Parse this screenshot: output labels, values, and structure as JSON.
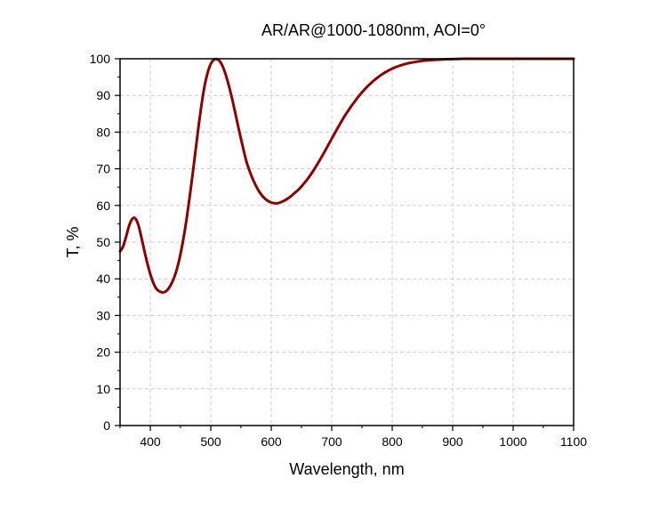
{
  "chart_data": {
    "type": "line",
    "title": "AR/AR@1000-1080nm, AOI=0°",
    "xlabel": "Wavelength, nm",
    "ylabel": "T, %",
    "xlim": [
      350,
      1100
    ],
    "ylim": [
      0,
      100
    ],
    "x_ticks": [
      "400",
      "500",
      "600",
      "700",
      "800",
      "900",
      "1000",
      "1100"
    ],
    "y_ticks": [
      "0",
      "10",
      "20",
      "30",
      "40",
      "50",
      "60",
      "70",
      "80",
      "90",
      "100"
    ],
    "grid": true,
    "legend": "none",
    "series": [
      {
        "color": "#8b0000",
        "x": [
          350,
          355,
          360,
          365,
          370,
          375,
          380,
          385,
          390,
          395,
          400,
          405,
          410,
          415,
          420,
          425,
          430,
          435,
          440,
          445,
          450,
          455,
          460,
          465,
          470,
          475,
          480,
          485,
          490,
          495,
          500,
          505,
          510,
          515,
          520,
          525,
          530,
          535,
          540,
          545,
          550,
          555,
          560,
          570,
          580,
          590,
          600,
          610,
          620,
          630,
          640,
          645,
          650,
          660,
          670,
          680,
          690,
          700,
          720,
          740,
          760,
          780,
          800,
          820,
          840,
          860,
          880,
          900,
          920,
          940,
          960,
          980,
          1000,
          1020,
          1040,
          1060,
          1080,
          1100
        ],
        "y": [
          47.5,
          48.8,
          51.5,
          54.5,
          56.3,
          56.5,
          54.8,
          51.5,
          47.8,
          44.3,
          41.3,
          38.9,
          37.3,
          36.6,
          36.3,
          36.5,
          37.3,
          38.7,
          40.6,
          43.3,
          46.8,
          51.2,
          56.3,
          62.2,
          68.5,
          75.2,
          81.8,
          87.8,
          92.8,
          96.3,
          98.6,
          99.7,
          99.9,
          99.3,
          97.8,
          95.5,
          92.6,
          89.3,
          85.6,
          81.8,
          78.1,
          74.6,
          71.4,
          67.0,
          63.8,
          61.8,
          60.8,
          60.6,
          61.2,
          62.2,
          63.6,
          64.3,
          65.2,
          67.2,
          69.6,
          72.3,
          75.2,
          78.2,
          84.0,
          88.8,
          92.6,
          95.4,
          97.3,
          98.5,
          99.2,
          99.6,
          99.8,
          99.9,
          100,
          100,
          100,
          100,
          100,
          100,
          100,
          100,
          100,
          100
        ]
      }
    ]
  }
}
